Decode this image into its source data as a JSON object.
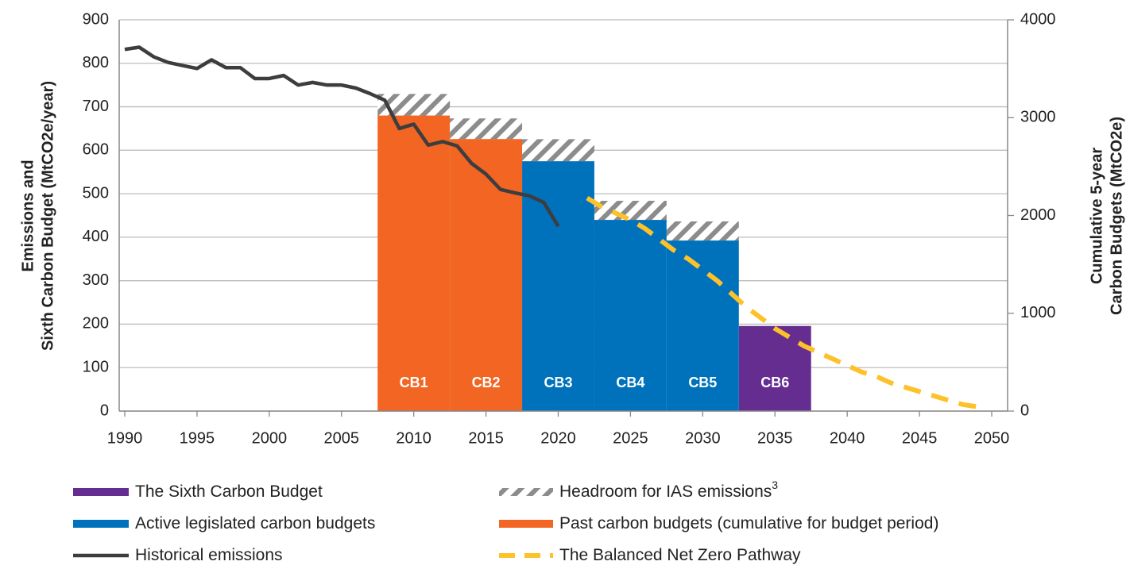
{
  "chart_data": {
    "type": "bar",
    "ylabel": [
      "Emissions and",
      "Sixth Carbon Budget (MtCO2e/year)"
    ],
    "y2label": [
      "Cumulative 5-year",
      "Carbon Budgets (MtCO2e)"
    ],
    "xlim": [
      1990,
      2050
    ],
    "xticks": [
      1990,
      1995,
      2000,
      2005,
      2010,
      2015,
      2020,
      2025,
      2030,
      2035,
      2040,
      2045,
      2050
    ],
    "ylim": [
      0,
      900
    ],
    "yticks": [
      0,
      100,
      200,
      300,
      400,
      500,
      600,
      700,
      800,
      900
    ],
    "y2lim": [
      0,
      4000
    ],
    "y2ticks": [
      0,
      1000,
      2000,
      3000,
      4000
    ],
    "grid": true,
    "legend": "bottom",
    "series": [
      {
        "name": "The Sixth Carbon Budget",
        "type": "bar",
        "axis": "y2",
        "color": "#662d91",
        "x": [
          2033
        ],
        "labels": [
          "CB6"
        ],
        "values": [
          870
        ]
      },
      {
        "name": "Headroom for IAS emissions",
        "name_note": "3",
        "type": "hatch",
        "axis": "y2",
        "color": "#8c8c8c",
        "x": [
          2008,
          2013,
          2018,
          2023,
          2028
        ],
        "values": [
          220,
          210,
          225,
          195,
          195
        ]
      },
      {
        "name": "Active legislated carbon budgets",
        "type": "bar",
        "axis": "y2",
        "color": "#0072bc",
        "x": [
          2018,
          2023,
          2028
        ],
        "labels": [
          "CB3",
          "CB4",
          "CB5"
        ],
        "values": [
          2555,
          1955,
          1744
        ]
      },
      {
        "name": "Past carbon budgets (cumulative for budget period)",
        "type": "bar",
        "axis": "y2",
        "color": "#f26522",
        "x": [
          2008,
          2013
        ],
        "labels": [
          "CB1",
          "CB2"
        ],
        "values": [
          3022,
          2782
        ]
      },
      {
        "name": "Historical emissions",
        "type": "line",
        "color": "#3d3d3f",
        "x": [
          1990,
          1991,
          1992,
          1993,
          1994,
          1995,
          1996,
          1997,
          1998,
          1999,
          2000,
          2001,
          2002,
          2003,
          2004,
          2005,
          2006,
          2007,
          2008,
          2009,
          2010,
          2011,
          2012,
          2013,
          2014,
          2015,
          2016,
          2017,
          2018,
          2019,
          2020
        ],
        "values": [
          832,
          837,
          815,
          802,
          795,
          788,
          808,
          790,
          790,
          765,
          765,
          772,
          750,
          756,
          750,
          750,
          743,
          730,
          715,
          650,
          660,
          612,
          620,
          610,
          570,
          545,
          510,
          502,
          495,
          480,
          425
        ]
      },
      {
        "name": "The Balanced Net Zero Pathway",
        "type": "dashed",
        "color": "#fdc12a",
        "x": [
          2022,
          2023,
          2024,
          2025,
          2026,
          2027,
          2028,
          2029,
          2030,
          2031,
          2032,
          2033,
          2034,
          2035,
          2036,
          2037,
          2038,
          2039,
          2040,
          2041,
          2042,
          2043,
          2044,
          2045,
          2046,
          2047,
          2048,
          2049
        ],
        "values": [
          490,
          470,
          455,
          440,
          420,
          395,
          370,
          350,
          325,
          300,
          270,
          240,
          215,
          190,
          170,
          150,
          135,
          120,
          105,
          90,
          80,
          65,
          55,
          45,
          35,
          25,
          15,
          10
        ]
      }
    ]
  }
}
